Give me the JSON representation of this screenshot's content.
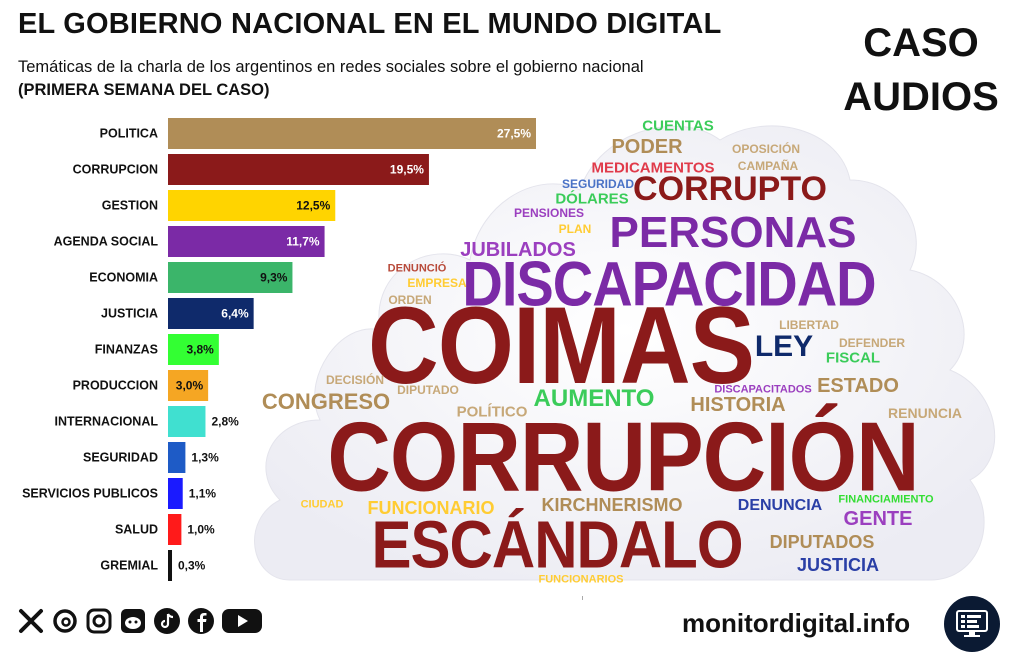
{
  "header": {
    "title": "EL GOBIERNO NACIONAL EN EL MUNDO DIGITAL",
    "subtitle": "Temáticas de la charla de los argentinos en redes sociales sobre el gobierno nacional",
    "subtitle_bold": "(PRIMERA SEMANA DEL CASO)",
    "badge_line1": "CASO",
    "badge_line2": "AUDIOS"
  },
  "chart_data": {
    "type": "bar",
    "orientation": "horizontal",
    "title": "Temáticas de la charla de los argentinos en redes sociales sobre el gobierno nacional",
    "xlabel": "",
    "ylabel": "",
    "xlim": [
      0,
      30
    ],
    "categories": [
      "POLITICA",
      "CORRUPCION",
      "GESTION",
      "AGENDA SOCIAL",
      "ECONOMIA",
      "JUSTICIA",
      "FINANZAS",
      "PRODUCCION",
      "INTERNACIONAL",
      "SEGURIDAD",
      "SERVICIOS PUBLICOS",
      "SALUD",
      "GREMIAL"
    ],
    "values": [
      27.5,
      19.5,
      12.5,
      11.7,
      9.3,
      6.4,
      3.8,
      3.0,
      2.8,
      1.3,
      1.1,
      1.0,
      0.3
    ],
    "value_labels": [
      "27,5%",
      "19,5%",
      "12,5%",
      "11,7%",
      "9,3%",
      "6,4%",
      "3,8%",
      "3,0%",
      "2,8%",
      "1,3%",
      "1,1%",
      "1,0%",
      "0,3%"
    ],
    "colors": [
      "#b08d57",
      "#8b1a1a",
      "#ffd400",
      "#7b2aa6",
      "#3bb56a",
      "#0f2a6b",
      "#33ff33",
      "#f5a623",
      "#40e0d0",
      "#1e5bc6",
      "#1a1aff",
      "#ff1a1a",
      "#111111"
    ],
    "label_colors": [
      "#ffffff",
      "#ffffff",
      "#111111",
      "#ffffff",
      "#111111",
      "#ffffff",
      "#111111",
      "#111111",
      "#111111",
      "#111111",
      "#111111",
      "#111111",
      "#111111"
    ],
    "label_inside": [
      true,
      true,
      true,
      true,
      true,
      true,
      true,
      true,
      false,
      false,
      false,
      false,
      false
    ]
  },
  "wordcloud": [
    {
      "text": "CUENTAS",
      "color": "#3bcc5a",
      "size": 15
    },
    {
      "text": "PODER",
      "color": "#b08d57",
      "size": 20
    },
    {
      "text": "OPOSICIÓN",
      "color": "#c7a878",
      "size": 12
    },
    {
      "text": "MEDICAMENTOS",
      "color": "#e03a4a",
      "size": 15
    },
    {
      "text": "CAMPAÑA",
      "color": "#c7a878",
      "size": 12
    },
    {
      "text": "SEGURIDAD",
      "color": "#4a72c6",
      "size": 12
    },
    {
      "text": "CORRUPTO",
      "color": "#8b1a1a",
      "size": 34
    },
    {
      "text": "DÓLARES",
      "color": "#3bcc5a",
      "size": 15
    },
    {
      "text": "PENSIONES",
      "color": "#9b3fbf",
      "size": 12
    },
    {
      "text": "PLAN",
      "color": "#ffcc33",
      "size": 12
    },
    {
      "text": "PERSONAS",
      "color": "#7b2aa6",
      "size": 44
    },
    {
      "text": "JUBILADOS",
      "color": "#9b3fbf",
      "size": 20
    },
    {
      "text": "DENUNCIÓ",
      "color": "#b84a3a",
      "size": 11
    },
    {
      "text": "EMPRESA",
      "color": "#ffcc33",
      "size": 12
    },
    {
      "text": "DISCAPACIDAD",
      "color": "#7b2aa6",
      "size": 56
    },
    {
      "text": "ORDEN",
      "color": "#c7a878",
      "size": 12
    },
    {
      "text": "COIMAS",
      "color": "#8b1a1a",
      "size": 98
    },
    {
      "text": "LIBERTAD",
      "color": "#c7a878",
      "size": 12
    },
    {
      "text": "DEFENDER",
      "color": "#c7a878",
      "size": 12
    },
    {
      "text": "LEY",
      "color": "#0f2a6b",
      "size": 30
    },
    {
      "text": "FISCAL",
      "color": "#3bcc5a",
      "size": 15
    },
    {
      "text": "DECISIÓN",
      "color": "#c7a878",
      "size": 12
    },
    {
      "text": "DIPUTADO",
      "color": "#c7a878",
      "size": 12
    },
    {
      "text": "DISCAPACITADOS",
      "color": "#9b3fbf",
      "size": 11
    },
    {
      "text": "ESTADO",
      "color": "#b08d57",
      "size": 20
    },
    {
      "text": "CONGRESO",
      "color": "#b08d57",
      "size": 22
    },
    {
      "text": "AUMENTO",
      "color": "#3bcc5a",
      "size": 24
    },
    {
      "text": "HISTORIA",
      "color": "#b08d57",
      "size": 20
    },
    {
      "text": "POLÍTICO",
      "color": "#c7a878",
      "size": 15
    },
    {
      "text": "RENUNCIA",
      "color": "#c7a878",
      "size": 14
    },
    {
      "text": "CORRUPCIÓN",
      "color": "#8b1a1a",
      "size": 88
    },
    {
      "text": "CIUDAD",
      "color": "#ffcc33",
      "size": 11
    },
    {
      "text": "FUNCIONARIO",
      "color": "#ffcc33",
      "size": 18
    },
    {
      "text": "KIRCHNERISMO",
      "color": "#b08d57",
      "size": 18
    },
    {
      "text": "DENUNCIA",
      "color": "#2a3fa6",
      "size": 16
    },
    {
      "text": "FINANCIAMIENTO",
      "color": "#33dd33",
      "size": 11
    },
    {
      "text": "GENTE",
      "color": "#9b3fbf",
      "size": 20
    },
    {
      "text": "ESCÁNDALO",
      "color": "#8b1a1a",
      "size": 60
    },
    {
      "text": "DIPUTADOS",
      "color": "#b08d57",
      "size": 18
    },
    {
      "text": "JUSTICIA",
      "color": "#2a3fa6",
      "size": 18
    },
    {
      "text": "FUNCIONARIOS",
      "color": "#ffcc33",
      "size": 11
    }
  ],
  "footer": {
    "site": "monitordigital.info",
    "social_icons": [
      "x-icon",
      "threads-icon",
      "instagram-icon",
      "reddit-icon",
      "tiktok-icon",
      "facebook-icon",
      "youtube-icon"
    ]
  }
}
